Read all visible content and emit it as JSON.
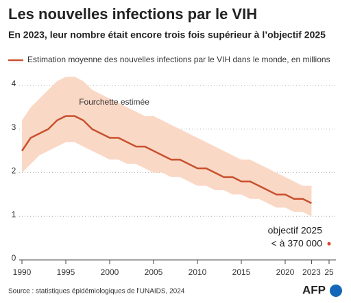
{
  "chart_data": {
    "type": "line",
    "title": "Les nouvelles infections par le VIH",
    "subtitle": "En 2023, leur nombre était encore trois fois supérieur à l’objectif 2025",
    "x": [
      1990,
      1991,
      1992,
      1993,
      1994,
      1995,
      1996,
      1997,
      1998,
      1999,
      2000,
      2001,
      2002,
      2003,
      2004,
      2005,
      2006,
      2007,
      2008,
      2009,
      2010,
      2011,
      2012,
      2013,
      2014,
      2015,
      2016,
      2017,
      2018,
      2019,
      2020,
      2021,
      2022,
      2023
    ],
    "series": [
      {
        "name": "Estimation moyenne des nouvelles infections par le VIH dans le monde, en millions",
        "color": "#c8502d",
        "values": [
          2.5,
          2.8,
          2.9,
          3.0,
          3.2,
          3.3,
          3.3,
          3.2,
          3.0,
          2.9,
          2.8,
          2.8,
          2.7,
          2.6,
          2.6,
          2.5,
          2.4,
          2.3,
          2.3,
          2.2,
          2.1,
          2.1,
          2.0,
          1.9,
          1.9,
          1.8,
          1.8,
          1.7,
          1.6,
          1.5,
          1.5,
          1.4,
          1.4,
          1.3
        ]
      }
    ],
    "band": {
      "name": "Fourchette estimée",
      "color": "#fad8c6",
      "lower": [
        2.0,
        2.2,
        2.4,
        2.5,
        2.6,
        2.7,
        2.7,
        2.6,
        2.5,
        2.4,
        2.3,
        2.3,
        2.2,
        2.2,
        2.1,
        2.0,
        2.0,
        1.9,
        1.9,
        1.8,
        1.7,
        1.7,
        1.6,
        1.6,
        1.5,
        1.5,
        1.4,
        1.4,
        1.3,
        1.2,
        1.2,
        1.1,
        1.1,
        1.0
      ],
      "upper": [
        3.2,
        3.5,
        3.7,
        3.9,
        4.1,
        4.2,
        4.2,
        4.1,
        3.9,
        3.8,
        3.7,
        3.6,
        3.5,
        3.4,
        3.3,
        3.3,
        3.2,
        3.1,
        3.0,
        2.9,
        2.8,
        2.7,
        2.6,
        2.5,
        2.4,
        2.3,
        2.3,
        2.2,
        2.1,
        2.0,
        1.9,
        1.8,
        1.7,
        1.7
      ]
    },
    "target": {
      "label": "objectif 2025",
      "value_label": "< à 370 000",
      "x": 2025,
      "value": 0.37,
      "color": "#d9472b"
    },
    "xlim": [
      1990,
      2025
    ],
    "ylim": [
      0,
      4.3
    ],
    "xticks": [
      1990,
      1995,
      2000,
      2005,
      2010,
      2015,
      2020,
      2023,
      {
        "value": 2025,
        "label": "25"
      }
    ],
    "yticks": [
      0,
      1,
      2,
      3,
      4
    ],
    "grid": true,
    "source": "Source : statistiques épidémiologiques de l’UNAIDS, 2024",
    "logo": "AFP"
  }
}
